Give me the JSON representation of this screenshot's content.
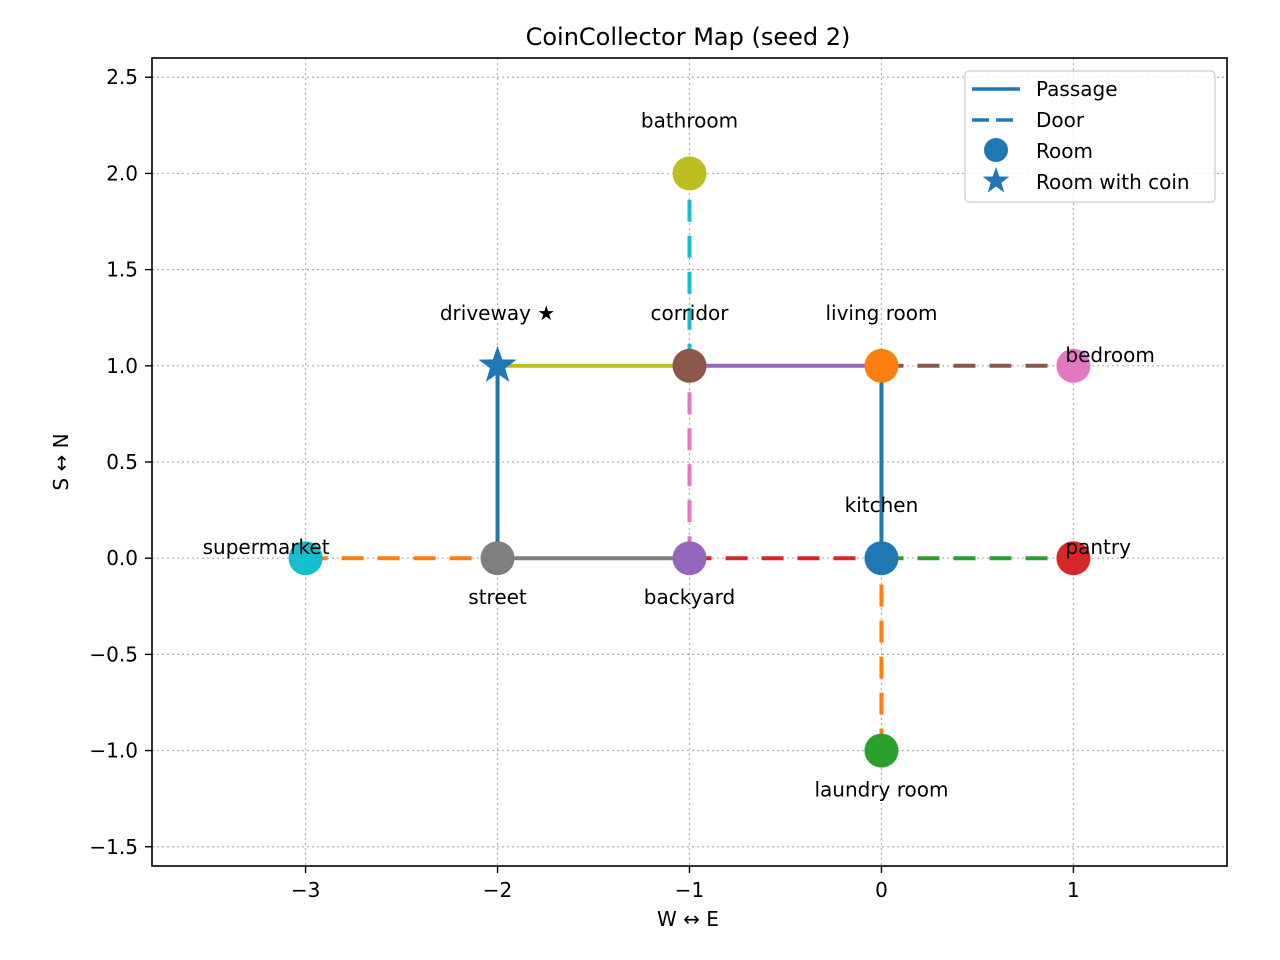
{
  "chart_data": {
    "type": "map-graph",
    "title": "CoinCollector Map (seed 2)",
    "xlabel": "W ↔ E",
    "ylabel": "S ↔ N",
    "xlim": [
      -3.8,
      1.8
    ],
    "ylim": [
      -1.6,
      2.6
    ],
    "xticks": [
      -3,
      -2,
      -1,
      0,
      1
    ],
    "xtick_labels": [
      "−3",
      "−2",
      "−1",
      "0",
      "1"
    ],
    "yticks": [
      -1.5,
      -1.0,
      -0.5,
      0.0,
      0.5,
      1.0,
      1.5,
      2.0,
      2.5
    ],
    "ytick_labels": [
      "−1.5",
      "−1.0",
      "−0.5",
      "0.0",
      "0.5",
      "1.0",
      "1.5",
      "2.0",
      "2.5"
    ],
    "grid": true,
    "legend": {
      "placement": "top-right",
      "entries": [
        {
          "label": "Passage",
          "kind": "solid-line"
        },
        {
          "label": "Door",
          "kind": "dashed-line"
        },
        {
          "label": "Room",
          "kind": "circle"
        },
        {
          "label": "Room with coin",
          "kind": "star"
        }
      ]
    },
    "rooms": [
      {
        "name": "driveway",
        "label": "driveway ★",
        "x": -2,
        "y": 1,
        "coin": true,
        "color": "#1f77b4",
        "label_pos": "above"
      },
      {
        "name": "corridor",
        "label": "corridor",
        "x": -1,
        "y": 1,
        "coin": false,
        "color": "#8c564b",
        "label_pos": "above"
      },
      {
        "name": "living room",
        "label": "living room",
        "x": 0,
        "y": 1,
        "coin": false,
        "color": "#ff7f0e",
        "label_pos": "above"
      },
      {
        "name": "bedroom",
        "label": "bedroom",
        "x": 1,
        "y": 1,
        "coin": false,
        "color": "#e377c2",
        "label_pos": "above-right"
      },
      {
        "name": "bathroom",
        "label": "bathroom",
        "x": -1,
        "y": 2,
        "coin": false,
        "color": "#bcbd22",
        "label_pos": "above"
      },
      {
        "name": "supermarket",
        "label": "supermarket",
        "x": -3,
        "y": 0,
        "coin": false,
        "color": "#17becf",
        "label_pos": "above-left"
      },
      {
        "name": "street",
        "label": "street",
        "x": -2,
        "y": 0,
        "coin": false,
        "color": "#7f7f7f",
        "label_pos": "below"
      },
      {
        "name": "backyard",
        "label": "backyard",
        "x": -1,
        "y": 0,
        "coin": false,
        "color": "#9467bd",
        "label_pos": "below"
      },
      {
        "name": "kitchen",
        "label": "kitchen",
        "x": 0,
        "y": 0,
        "coin": false,
        "color": "#1f77b4",
        "label_pos": "above"
      },
      {
        "name": "pantry",
        "label": "pantry",
        "x": 1,
        "y": 0,
        "coin": false,
        "color": "#d62728",
        "label_pos": "above-right"
      },
      {
        "name": "laundry room",
        "label": "laundry room",
        "x": 0,
        "y": -1,
        "coin": false,
        "color": "#2ca02c",
        "label_pos": "below"
      }
    ],
    "connections": [
      {
        "from": [
          -2,
          1
        ],
        "to": [
          -1,
          1
        ],
        "kind": "passage",
        "color": "#bcbd22"
      },
      {
        "from": [
          -1,
          1
        ],
        "to": [
          0,
          1
        ],
        "kind": "passage",
        "color": "#9467bd"
      },
      {
        "from": [
          0,
          1
        ],
        "to": [
          1,
          1
        ],
        "kind": "door",
        "color": "#8c564b"
      },
      {
        "from": [
          -1,
          1
        ],
        "to": [
          -1,
          2
        ],
        "kind": "door",
        "color": "#17becf"
      },
      {
        "from": [
          -2,
          0
        ],
        "to": [
          -2,
          1
        ],
        "kind": "passage",
        "color": "#1f77b4"
      },
      {
        "from": [
          -1,
          0
        ],
        "to": [
          -1,
          1
        ],
        "kind": "door",
        "color": "#e377c2"
      },
      {
        "from": [
          0,
          0
        ],
        "to": [
          0,
          1
        ],
        "kind": "passage",
        "color": "#1f77b4"
      },
      {
        "from": [
          -3,
          0
        ],
        "to": [
          -2,
          0
        ],
        "kind": "door",
        "color": "#ff7f0e"
      },
      {
        "from": [
          -2,
          0
        ],
        "to": [
          -1,
          0
        ],
        "kind": "passage",
        "color": "#7f7f7f"
      },
      {
        "from": [
          -1,
          0
        ],
        "to": [
          0,
          0
        ],
        "kind": "door",
        "color": "#d62728"
      },
      {
        "from": [
          0,
          0
        ],
        "to": [
          1,
          0
        ],
        "kind": "door",
        "color": "#2ca02c"
      },
      {
        "from": [
          0,
          -1
        ],
        "to": [
          0,
          0
        ],
        "kind": "door",
        "color": "#ff7f0e"
      }
    ]
  },
  "colors": {
    "legend_marker": "#1f77b4",
    "axes": "#000000",
    "grid": "#b0b0b0"
  }
}
